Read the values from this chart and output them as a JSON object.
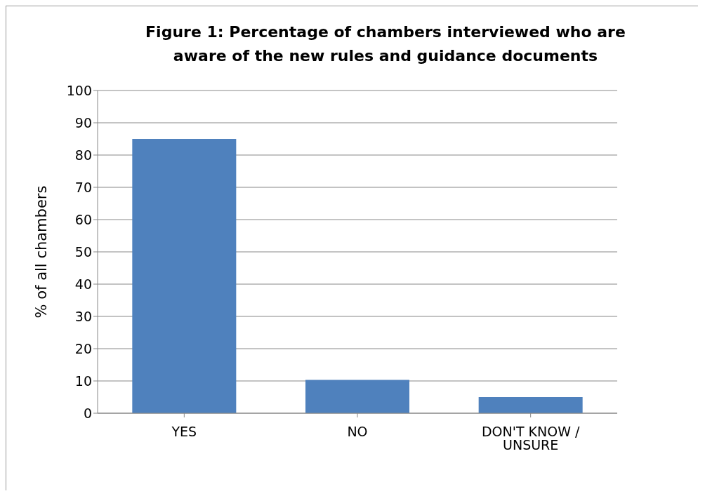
{
  "chart_data": {
    "type": "bar",
    "title": "Figure 1: Percentage of chambers interviewed who are aware of the new rules and guidance documents",
    "ylabel": "% of all chambers",
    "categories": [
      "YES",
      "NO",
      "DON'T KNOW / UNSURE"
    ],
    "values": [
      85,
      10.3,
      5
    ],
    "color": "#4f81bd",
    "ylim": [
      0,
      100
    ],
    "yticks": [
      0,
      10,
      20,
      30,
      40,
      50,
      60,
      70,
      80,
      90,
      100
    ],
    "grid": "y"
  }
}
